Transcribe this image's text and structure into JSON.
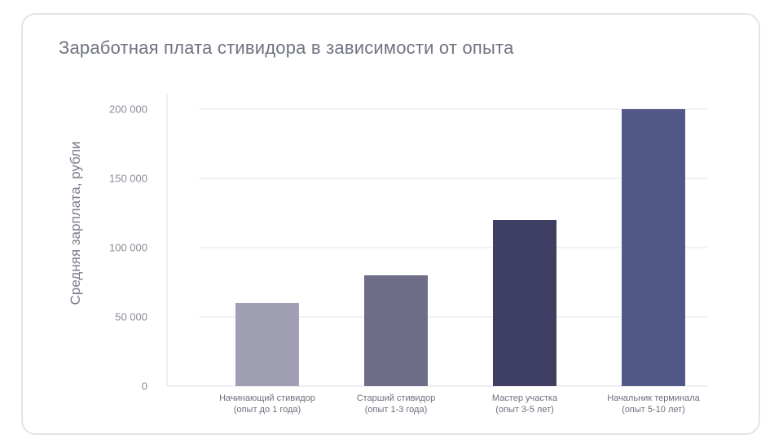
{
  "card": {
    "title": "Заработная плата стивидора в зависимости от опыта"
  },
  "chart_data": {
    "type": "bar",
    "title": "Заработная плата стивидора в зависимости от опыта",
    "xlabel": "",
    "ylabel": "Средняя зарплата, рубли",
    "ylim": [
      0,
      200000
    ],
    "yticks": [
      0,
      50000,
      100000,
      150000,
      200000
    ],
    "ytick_labels": [
      "0",
      "50 000",
      "100 000",
      "150 000",
      "200 000"
    ],
    "grid": true,
    "categories": [
      [
        "Начинающий стивидор",
        "(опыт до 1 года)"
      ],
      [
        "Старший стивидор",
        "(опыт 1-3 года)"
      ],
      [
        "Мастер участка",
        "(опыт 3-5 лет)"
      ],
      [
        "Начальник терминала",
        "(опыт 5-10 лет)"
      ]
    ],
    "values": [
      60000,
      80000,
      120000,
      200000
    ],
    "colors": [
      "#a09fb3",
      "#6d6d87",
      "#3f3f63",
      "#525887"
    ]
  },
  "style": {
    "grid_color": "#e6e6ec",
    "axis_color": "#dcdce3"
  }
}
